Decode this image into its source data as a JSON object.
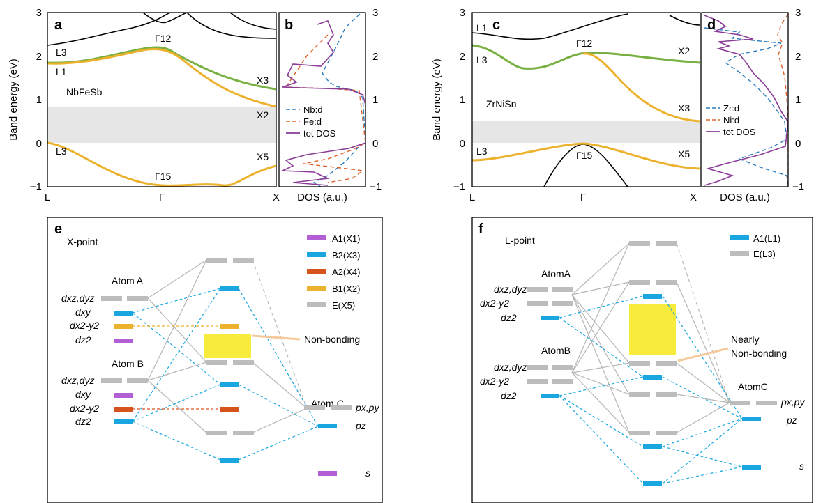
{
  "colors": {
    "green": "#78b041",
    "yellow": "#ecb22e",
    "gap": "#e6e6e6",
    "purple": "#8a3c97",
    "blue_dash": "#2b7bbd",
    "orange_dash": "#e0602a",
    "cyan": "#1aa7e0",
    "orange_bar": "#d6531d",
    "purple_bar": "#b25fd6",
    "grey_bar": "#bdbdbd",
    "yellow_box": "#f7eb3c"
  },
  "common": {
    "band_ylabel": "Band energy (eV)",
    "dos_xlabel": "DOS (a.u.)",
    "y_ticks": [
      "3",
      "2",
      "1",
      "0",
      "−1"
    ],
    "x_L": "L",
    "x_G": "Γ",
    "x_X": "X"
  },
  "panel_a": {
    "letter": "a",
    "material": "NbFeSb",
    "labels": {
      "L3_top": "L3",
      "L1": "L1",
      "L3_bot": "L3",
      "G12": "Γ12",
      "G15": "Γ15",
      "X3": "X3",
      "X2": "X2",
      "X5": "X5"
    }
  },
  "panel_b": {
    "letter": "b",
    "legend": [
      "Nb:d",
      "Fe:d",
      "tot DOS"
    ]
  },
  "panel_c": {
    "letter": "c",
    "material": "ZrNiSn",
    "labels": {
      "L1": "L1",
      "L3_top": "L3",
      "L3_bot": "L3",
      "G12": "Γ12",
      "G15": "Γ15",
      "X2": "X2",
      "X3": "X3",
      "X5": "X5"
    }
  },
  "panel_d": {
    "letter": "d",
    "legend": [
      "Zr:d",
      "Ni:d",
      "tot DOS"
    ]
  },
  "panel_e": {
    "letter": "e",
    "title": "X-point",
    "atom_a": "Atom A",
    "atom_b": "Atom B",
    "atom_c": "Atom C",
    "orb_dxz_dyz": "dxz,dyz",
    "orb_dxy": "dxy",
    "orb_dx2y2": "dx2-y2",
    "orb_dz2": "dz2",
    "orb_pxpy": "px,py",
    "orb_pz": "pz",
    "orb_s": "s",
    "nonbonding": "Non-bonding",
    "legend": [
      "A1(X1)",
      "B2(X3)",
      "A2(X4)",
      "B1(X2)",
      "E(X5)"
    ]
  },
  "panel_f": {
    "letter": "f",
    "title": "L-point",
    "atom_a": "AtomA",
    "atom_b": "AtomB",
    "atom_c": "AtomC",
    "nearly": "Nearly",
    "nonbonding": "Non-bonding",
    "legend": [
      "A1(L1)",
      "E(L3)"
    ]
  },
  "chart_data": [
    {
      "type": "line",
      "panel": "a",
      "title": "NbFeSb",
      "xlabel": "",
      "ylabel": "Band energy (eV)",
      "x": [
        "L",
        "Γ",
        "X"
      ],
      "ylim": [
        -1,
        3
      ],
      "band_gap": [
        0,
        0.82
      ],
      "series": [
        {
          "values": [
            1.85,
            2.17,
            1.22
          ]
        },
        {
          "values": [
            1.85,
            2.17,
            0.83
          ]
        },
        {
          "values": [
            0.0,
            -0.97,
            -0.55
          ]
        }
      ]
    },
    {
      "type": "line",
      "panel": "b",
      "xlabel": "DOS (a.u.)",
      "ylim": [
        -1,
        3
      ],
      "legend": [
        "Nb:d",
        "Fe:d",
        "tot DOS"
      ]
    },
    {
      "type": "line",
      "panel": "c",
      "title": "ZrNiSn",
      "xlabel": "",
      "ylabel": "Band energy (eV)",
      "x": [
        "L",
        "Γ",
        "X"
      ],
      "ylim": [
        -1,
        3
      ],
      "band_gap": [
        0,
        0.52
      ],
      "series": [
        {
          "values": [
            2.3,
            2.1,
            1.88
          ]
        },
        {
          "values": [
            2.3,
            2.1,
            0.52
          ]
        },
        {
          "values": [
            -0.35,
            0.0,
            -0.6
          ]
        }
      ]
    },
    {
      "type": "line",
      "panel": "d",
      "xlabel": "DOS (a.u.)",
      "ylim": [
        -1,
        3
      ],
      "legend": [
        "Zr:d",
        "Ni:d",
        "tot DOS"
      ]
    }
  ]
}
